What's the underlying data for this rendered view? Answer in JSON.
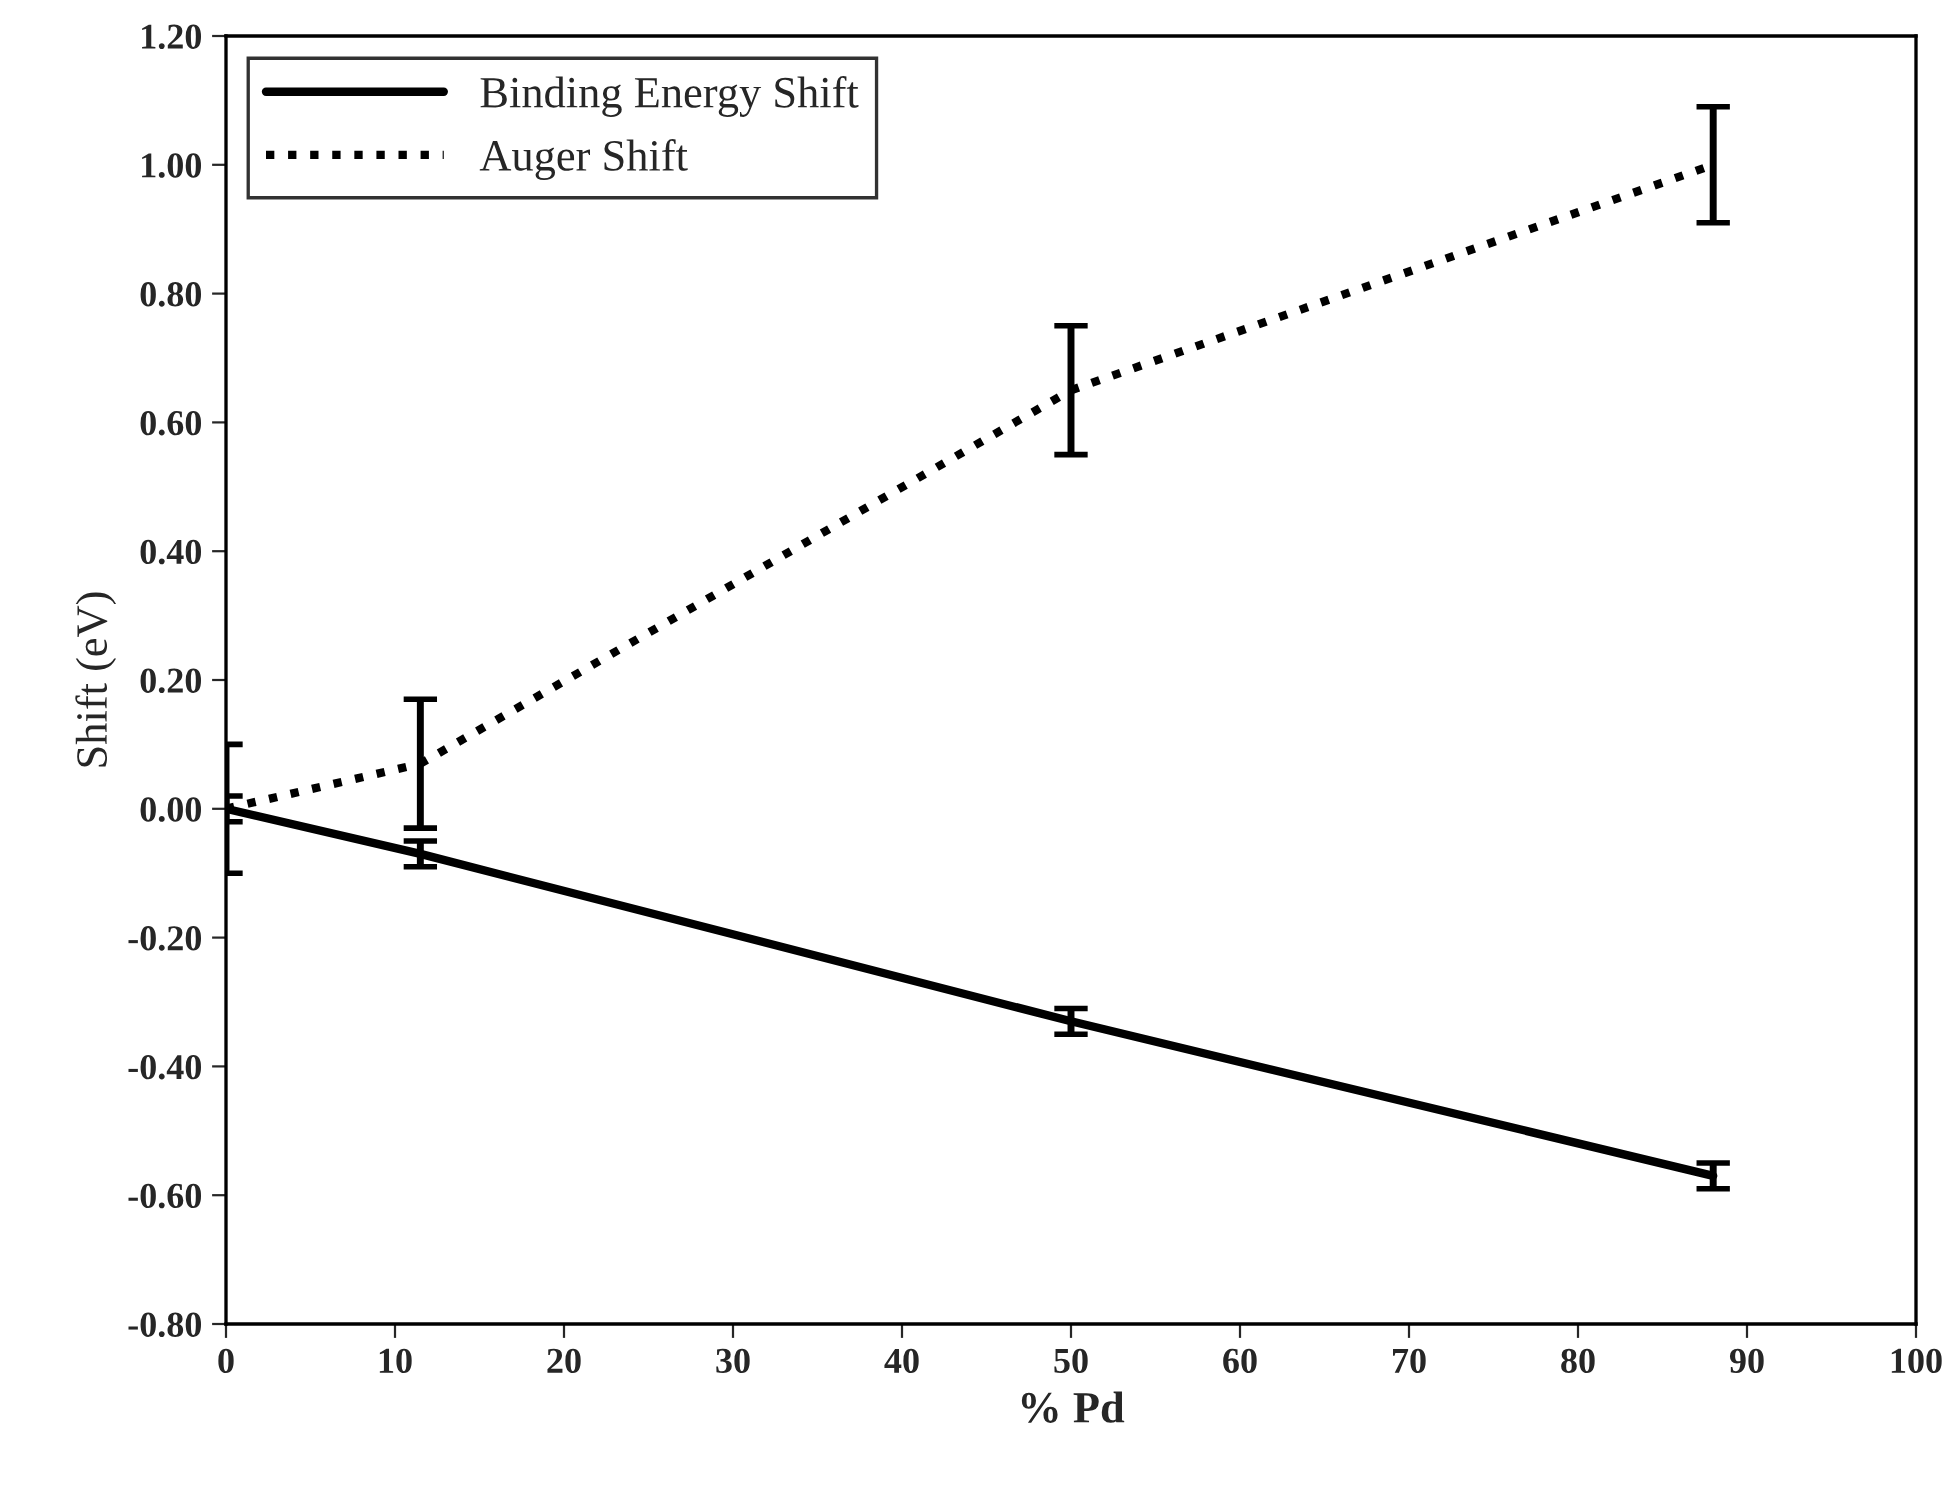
{
  "chart_data": {
    "type": "line",
    "xlabel": "% Pd",
    "ylabel": "Shift (eV)",
    "series": [
      {
        "name": "Binding Energy Shift",
        "color": "#000000",
        "line_style": "solid",
        "x": [
          0,
          11.5,
          50,
          88
        ],
        "values": [
          0,
          -0.07,
          -0.33,
          -0.57
        ],
        "errors": [
          0.02,
          0.02,
          0.02,
          0.02
        ]
      },
      {
        "name": "Auger Shift",
        "color": "#000000",
        "line_style": "dotted",
        "x": [
          0,
          11.5,
          50,
          88
        ],
        "values": [
          0,
          0.07,
          0.65,
          1.0
        ],
        "errors": [
          0.1,
          0.1,
          0.1,
          0.09
        ]
      }
    ],
    "xlim": [
      0,
      100
    ],
    "xticks": [
      0,
      10,
      20,
      30,
      40,
      50,
      60,
      70,
      80,
      90,
      100
    ],
    "ylim": [
      -0.8,
      1.2
    ],
    "yticks": [
      {
        "value": -0.8,
        "label": "-0.80"
      },
      {
        "value": -0.6,
        "label": "-0.60"
      },
      {
        "value": -0.4,
        "label": "-0.40"
      },
      {
        "value": -0.2,
        "label": "-0.20"
      },
      {
        "value": 0,
        "label": "0.00"
      },
      {
        "value": 0.2,
        "label": "0.20"
      },
      {
        "value": 0.4,
        "label": "0.40"
      },
      {
        "value": 0.6,
        "label": "0.60"
      },
      {
        "value": 0.8,
        "label": "0.80"
      },
      {
        "value": 1.0,
        "label": "1.00"
      },
      {
        "value": 1.2,
        "label": "1.20"
      }
    ],
    "grid": false,
    "legend": "top left",
    "marker": "none"
  }
}
